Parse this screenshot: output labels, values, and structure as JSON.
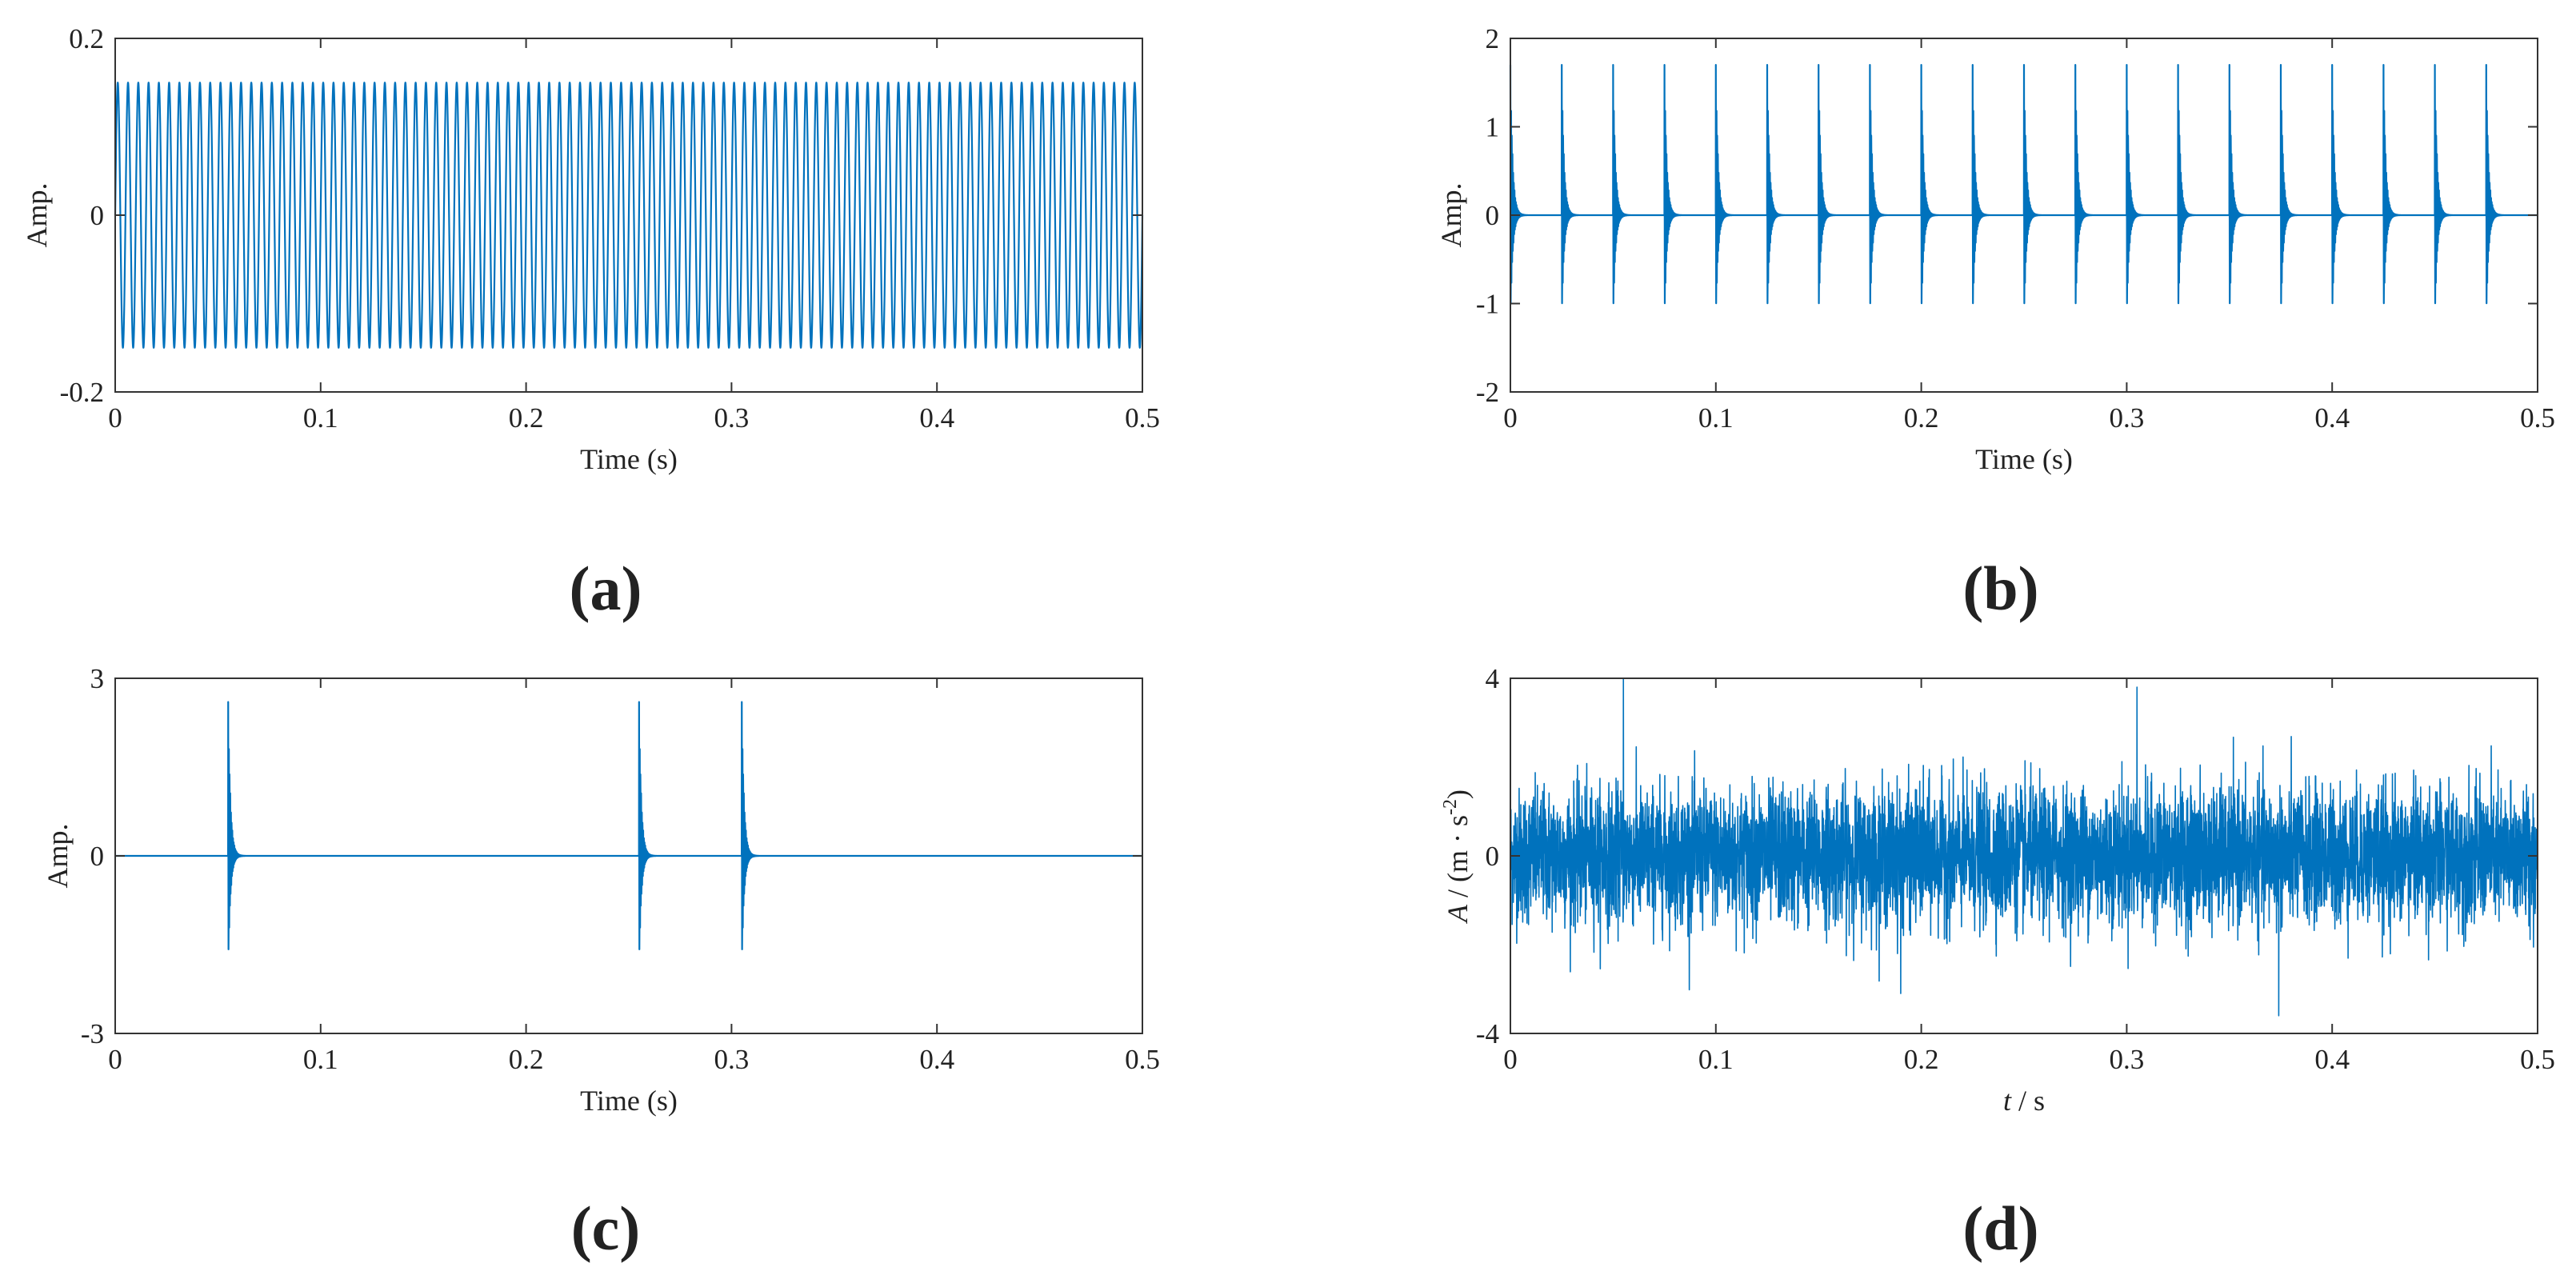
{
  "figure": {
    "line_color": "#0072BD",
    "panels": [
      {
        "caption": "(a)",
        "chart_data": {
          "type": "line",
          "signal": "sinusoid",
          "amplitude": 0.15,
          "frequency_hz": 200,
          "duration_s": 0.5,
          "xlim": [
            0,
            0.5
          ],
          "ylim": [
            -0.2,
            0.2
          ],
          "xticks": [
            0,
            0.1,
            0.2,
            0.3,
            0.4,
            0.5
          ],
          "yticks": [
            -0.2,
            0,
            0.2
          ],
          "xtick_labels": [
            "0",
            "0.1",
            "0.2",
            "0.3",
            "0.4",
            "0.5"
          ],
          "ytick_labels": [
            "-0.2",
            "0",
            "0.2"
          ],
          "xlabel": "Time (s)",
          "ylabel": "Amp."
        }
      },
      {
        "caption": "(b)",
        "chart_data": {
          "type": "line",
          "signal": "periodic impulses",
          "impulse_times_s": [
            0,
            0.025,
            0.05,
            0.075,
            0.1,
            0.125,
            0.15,
            0.175,
            0.2,
            0.225,
            0.25,
            0.275,
            0.3,
            0.325,
            0.35,
            0.375,
            0.4,
            0.425,
            0.45,
            0.475
          ],
          "peak_positive": 1.7,
          "peak_negative": -1.2,
          "xlim": [
            0,
            0.5
          ],
          "ylim": [
            -2,
            2
          ],
          "xticks": [
            0,
            0.1,
            0.2,
            0.3,
            0.4,
            0.5
          ],
          "yticks": [
            -2,
            -1,
            0,
            1,
            2
          ],
          "xtick_labels": [
            "0",
            "0.1",
            "0.2",
            "0.3",
            "0.4",
            "0.5"
          ],
          "ytick_labels": [
            "-2",
            "-1",
            "0",
            "1",
            "2"
          ],
          "xlabel": "Time (s)",
          "ylabel": "Amp."
        }
      },
      {
        "caption": "(c)",
        "chart_data": {
          "type": "line",
          "signal": "random impulses",
          "impulse_times_s": [
            0.055,
            0.255,
            0.305
          ],
          "peak_positive": 2.6,
          "peak_negative": -1.9,
          "xlim": [
            0,
            0.5
          ],
          "ylim": [
            -3,
            3
          ],
          "xticks": [
            0,
            0.1,
            0.2,
            0.3,
            0.4,
            0.5
          ],
          "yticks": [
            -3,
            0,
            3
          ],
          "xtick_labels": [
            "0",
            "0.1",
            "0.2",
            "0.3",
            "0.4",
            "0.5"
          ],
          "ytick_labels": [
            "-3",
            "0",
            "3"
          ],
          "xlabel": "Time (s)",
          "ylabel": "Amp."
        }
      },
      {
        "caption": "(d)",
        "chart_data": {
          "type": "line",
          "signal": "noisy measured signal",
          "approx_peak_max": 4.0,
          "approx_peak_min": -3.6,
          "xlim": [
            0,
            0.5
          ],
          "ylim": [
            -4,
            4
          ],
          "xticks": [
            0,
            0.1,
            0.2,
            0.3,
            0.4,
            0.5
          ],
          "yticks": [
            -4,
            0,
            4
          ],
          "xtick_labels": [
            "0",
            "0.1",
            "0.2",
            "0.3",
            "0.4",
            "0.5"
          ],
          "ytick_labels": [
            "-4",
            "0",
            "4"
          ],
          "xlabel_main": "t",
          "xlabel_rest": " / s",
          "ylabel_main": "A",
          "ylabel_rest": " / (m · s",
          "ylabel_sup": "-2",
          "ylabel_close": ")"
        }
      }
    ]
  }
}
